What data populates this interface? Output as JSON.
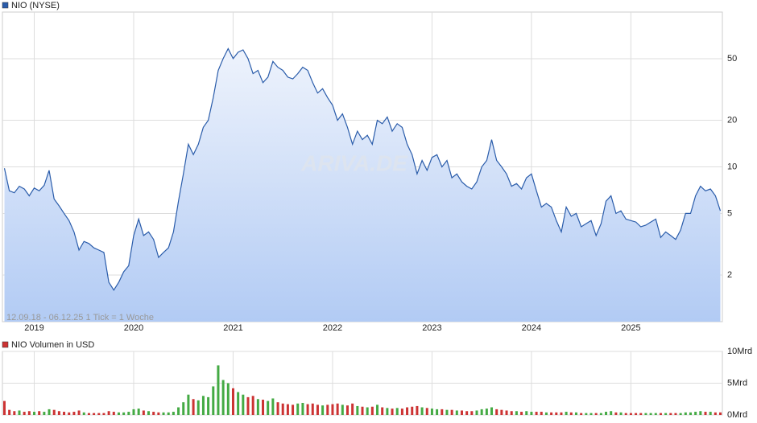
{
  "chart_data": [
    {
      "type": "area",
      "log_scale": true,
      "grid": true,
      "watermark": "ARIVA.DE",
      "annotation": "12.09.18 - 06.12.25   1 Tick = 1 Woche",
      "fill_top": "#eef3fc",
      "fill_bottom": "#b2cbf4",
      "x": [
        2018.7,
        2018.75,
        2018.8,
        2018.85,
        2018.9,
        2018.95,
        2019.0,
        2019.05,
        2019.1,
        2019.15,
        2019.2,
        2019.25,
        2019.3,
        2019.35,
        2019.4,
        2019.45,
        2019.5,
        2019.55,
        2019.6,
        2019.65,
        2019.7,
        2019.75,
        2019.8,
        2019.85,
        2019.9,
        2019.95,
        2020.0,
        2020.05,
        2020.1,
        2020.15,
        2020.2,
        2020.25,
        2020.3,
        2020.35,
        2020.4,
        2020.45,
        2020.5,
        2020.55,
        2020.6,
        2020.65,
        2020.7,
        2020.75,
        2020.8,
        2020.85,
        2020.9,
        2020.95,
        2021.0,
        2021.05,
        2021.1,
        2021.15,
        2021.2,
        2021.25,
        2021.3,
        2021.35,
        2021.4,
        2021.45,
        2021.5,
        2021.55,
        2021.6,
        2021.65,
        2021.7,
        2021.75,
        2021.8,
        2021.85,
        2021.9,
        2021.95,
        2022.0,
        2022.05,
        2022.1,
        2022.15,
        2022.2,
        2022.25,
        2022.3,
        2022.35,
        2022.4,
        2022.45,
        2022.5,
        2022.55,
        2022.6,
        2022.65,
        2022.7,
        2022.75,
        2022.8,
        2022.85,
        2022.9,
        2022.95,
        2023.0,
        2023.05,
        2023.1,
        2023.15,
        2023.2,
        2023.25,
        2023.3,
        2023.35,
        2023.4,
        2023.45,
        2023.5,
        2023.55,
        2023.6,
        2023.65,
        2023.7,
        2023.75,
        2023.8,
        2023.85,
        2023.9,
        2023.95,
        2024.0,
        2024.05,
        2024.1,
        2024.15,
        2024.2,
        2024.25,
        2024.3,
        2024.35,
        2024.4,
        2024.45,
        2024.5,
        2024.55,
        2024.6,
        2024.65,
        2024.7,
        2024.75,
        2024.8,
        2024.85,
        2024.9,
        2024.95,
        2025.0,
        2025.05,
        2025.1,
        2025.15,
        2025.2,
        2025.25,
        2025.3,
        2025.35,
        2025.4,
        2025.45,
        2025.5,
        2025.55,
        2025.6,
        2025.65,
        2025.7,
        2025.75,
        2025.8,
        2025.85,
        2025.9
      ],
      "series": [
        {
          "name": "NIO (NYSE)",
          "color": "#2a5caa",
          "values": [
            9.8,
            7.0,
            6.8,
            7.5,
            7.2,
            6.5,
            7.3,
            7.0,
            7.6,
            9.5,
            6.2,
            5.6,
            5.0,
            4.5,
            3.8,
            2.9,
            3.3,
            3.2,
            3.0,
            2.9,
            2.8,
            1.8,
            1.6,
            1.8,
            2.1,
            2.3,
            3.6,
            4.6,
            3.6,
            3.8,
            3.4,
            2.6,
            2.8,
            3.0,
            3.8,
            6.0,
            9.0,
            14,
            12,
            14,
            18,
            20,
            28,
            42,
            50,
            58,
            50,
            55,
            57,
            50,
            40,
            42,
            35,
            38,
            48,
            44,
            42,
            38,
            37,
            40,
            44,
            42,
            35,
            30,
            32,
            28,
            25,
            20,
            22,
            18,
            14,
            17,
            15,
            16,
            14,
            20,
            19,
            21,
            17,
            19,
            18,
            14,
            12,
            9,
            11,
            9.5,
            11.5,
            12,
            10,
            11,
            8.5,
            9,
            8,
            7.5,
            7.2,
            8,
            10,
            11,
            15,
            11,
            10,
            9,
            7.5,
            7.8,
            7.2,
            8.5,
            9,
            7,
            5.5,
            5.8,
            5.5,
            4.5,
            3.8,
            5.5,
            4.8,
            5,
            4.1,
            4.3,
            4.5,
            3.6,
            4.3,
            6,
            6.5,
            5,
            5.2,
            4.6,
            4.5,
            4.4,
            4.1,
            4.2,
            4.4,
            4.6,
            3.5,
            3.8,
            3.6,
            3.4,
            3.9,
            5,
            5,
            6.5,
            7.5,
            7,
            7.2,
            6.5,
            5.2
          ]
        }
      ],
      "xlim": [
        2018.68,
        2025.92
      ],
      "xticks": [
        2019,
        2020,
        2021,
        2022,
        2023,
        2024,
        2025
      ],
      "ylim": [
        1,
        100
      ],
      "yticks": [
        2,
        5,
        10,
        20,
        50
      ]
    },
    {
      "type": "bar",
      "grid": true,
      "up_color": "#44aa44",
      "series": [
        {
          "name": "NIO Volumen in USD",
          "color": "#cc3333",
          "values": [
            2.2,
            0.8,
            0.6,
            0.7,
            0.5,
            0.6,
            0.5,
            0.6,
            0.5,
            0.9,
            0.8,
            0.6,
            0.5,
            0.4,
            0.5,
            0.7,
            0.4,
            0.3,
            0.3,
            0.3,
            0.3,
            0.6,
            0.5,
            0.4,
            0.4,
            0.5,
            0.9,
            1.0,
            0.7,
            0.6,
            0.5,
            0.4,
            0.4,
            0.4,
            0.5,
            1.2,
            2.0,
            3.2,
            2.5,
            2.3,
            3.0,
            2.8,
            4.5,
            7.8,
            5.5,
            5.0,
            4.2,
            3.6,
            3.2,
            2.8,
            3.0,
            2.5,
            2.4,
            2.2,
            2.6,
            2.0,
            1.8,
            1.7,
            1.6,
            1.8,
            1.9,
            1.7,
            1.8,
            1.6,
            1.5,
            1.6,
            1.7,
            1.8,
            1.6,
            1.5,
            1.8,
            1.4,
            1.3,
            1.2,
            1.3,
            1.6,
            1.2,
            1.1,
            1.0,
            1.1,
            1.0,
            1.2,
            1.3,
            1.4,
            1.2,
            1.1,
            1.0,
            0.9,
            0.9,
            0.8,
            0.8,
            0.7,
            0.7,
            0.6,
            0.6,
            0.7,
            0.9,
            1.0,
            1.2,
            0.9,
            0.8,
            0.7,
            0.6,
            0.6,
            0.5,
            0.6,
            0.5,
            0.5,
            0.5,
            0.4,
            0.4,
            0.4,
            0.4,
            0.5,
            0.4,
            0.4,
            0.3,
            0.3,
            0.3,
            0.3,
            0.3,
            0.5,
            0.6,
            0.4,
            0.4,
            0.3,
            0.3,
            0.3,
            0.3,
            0.3,
            0.3,
            0.3,
            0.3,
            0.3,
            0.3,
            0.3,
            0.3,
            0.4,
            0.4,
            0.5,
            0.6,
            0.5,
            0.5,
            0.4,
            0.4
          ]
        }
      ],
      "ylim": [
        0,
        10
      ],
      "yticks": [
        {
          "value": 0,
          "label": "0Mrd"
        },
        {
          "value": 5,
          "label": "5Mrd"
        },
        {
          "value": 10,
          "label": "10Mrd"
        }
      ]
    }
  ]
}
